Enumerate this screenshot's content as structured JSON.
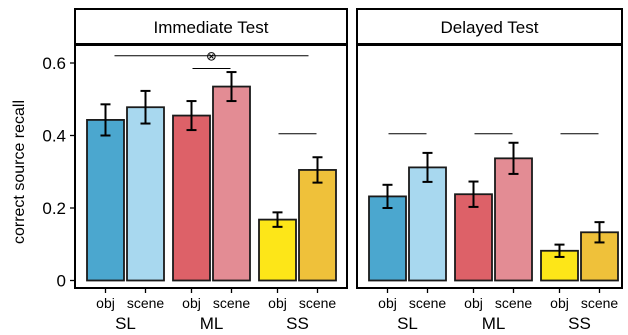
{
  "chart_data": {
    "type": "bar",
    "ylabel": "correct source recall",
    "ylim": [
      0,
      0.65
    ],
    "yticks": [
      0,
      0.2,
      0.4,
      0.6
    ],
    "ytick_labels": [
      "0",
      "0.2",
      "0.4",
      "0.6"
    ],
    "grid": false,
    "legend": "none",
    "colors": {
      "SL_obj": "#4BA7CF",
      "SL_scene": "#A8D8EF",
      "ML_obj": "#DD6168",
      "ML_scene": "#E38C94",
      "SS_obj": "#FDE618",
      "SS_scene": "#EFC13A"
    },
    "panels": [
      {
        "title": "Immediate Test",
        "groups": [
          {
            "name": "SL",
            "bars": [
              {
                "condition": "obj",
                "color_key": "SL_obj",
                "value": 0.443,
                "err": 0.043
              },
              {
                "condition": "scene",
                "color_key": "SL_scene",
                "value": 0.478,
                "err": 0.045
              }
            ]
          },
          {
            "name": "ML",
            "bars": [
              {
                "condition": "obj",
                "color_key": "ML_obj",
                "value": 0.455,
                "err": 0.04
              },
              {
                "condition": "scene",
                "color_key": "ML_scene",
                "value": 0.535,
                "err": 0.04
              }
            ]
          },
          {
            "name": "SS",
            "bars": [
              {
                "condition": "obj",
                "color_key": "SS_obj",
                "value": 0.168,
                "err": 0.02
              },
              {
                "condition": "scene",
                "color_key": "SS_scene",
                "value": 0.305,
                "err": 0.035
              }
            ]
          }
        ],
        "annotations": [
          {
            "type": "line",
            "from_group": 0,
            "to_group": 2,
            "y": 0.62
          },
          {
            "type": "line",
            "from_group": 1,
            "to_group": 1,
            "y": 0.585
          },
          {
            "type": "line",
            "from_group": 2,
            "to_group": 2,
            "y": 0.405
          }
        ],
        "significance_symbol": "⊗"
      },
      {
        "title": "Delayed Test",
        "groups": [
          {
            "name": "SL",
            "bars": [
              {
                "condition": "obj",
                "color_key": "SL_obj",
                "value": 0.232,
                "err": 0.032
              },
              {
                "condition": "scene",
                "color_key": "SL_scene",
                "value": 0.312,
                "err": 0.04
              }
            ]
          },
          {
            "name": "ML",
            "bars": [
              {
                "condition": "obj",
                "color_key": "ML_obj",
                "value": 0.238,
                "err": 0.035
              },
              {
                "condition": "scene",
                "color_key": "ML_scene",
                "value": 0.337,
                "err": 0.043
              }
            ]
          },
          {
            "name": "SS",
            "bars": [
              {
                "condition": "obj",
                "color_key": "SS_obj",
                "value": 0.082,
                "err": 0.017
              },
              {
                "condition": "scene",
                "color_key": "SS_scene",
                "value": 0.133,
                "err": 0.028
              }
            ]
          }
        ],
        "annotations": [
          {
            "type": "line",
            "from_group": 0,
            "to_group": 0,
            "y": 0.405
          },
          {
            "type": "line",
            "from_group": 1,
            "to_group": 1,
            "y": 0.405
          },
          {
            "type": "line",
            "from_group": 2,
            "to_group": 2,
            "y": 0.405
          }
        ]
      }
    ]
  }
}
